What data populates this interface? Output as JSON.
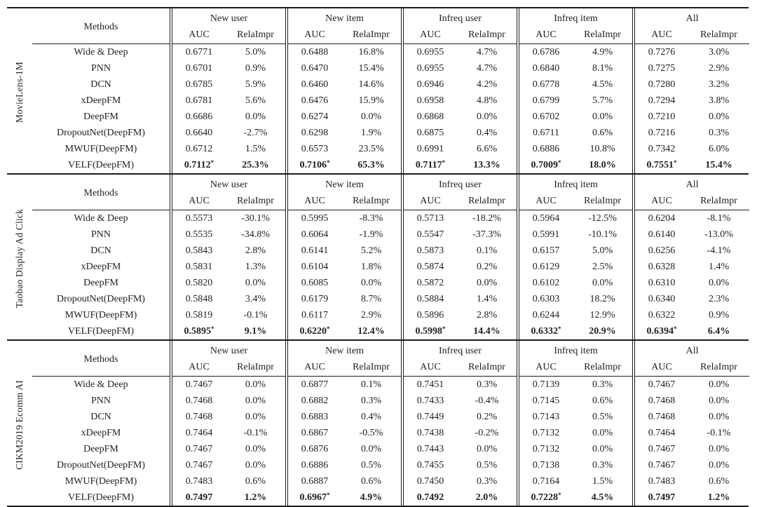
{
  "colors": {
    "background": "#ffffff",
    "text": "#1f1f1f",
    "rule": "#1c1c1c"
  },
  "table": {
    "methods_header": "Methods",
    "group_headers": [
      "New user",
      "New item",
      "Infreq user",
      "Infreq item",
      "All"
    ],
    "sub_headers": [
      "AUC",
      "RelaImpr"
    ],
    "sections": [
      {
        "dataset": "MovieLens-1M",
        "rows": [
          {
            "method": "Wide & Deep",
            "bold": false,
            "values": [
              "0.6771",
              "5.0%",
              "0.6488",
              "16.8%",
              "0.6955",
              "4.7%",
              "0.6786",
              "4.9%",
              "0.7276",
              "3.0%"
            ]
          },
          {
            "method": "PNN",
            "bold": false,
            "values": [
              "0.6701",
              "0.9%",
              "0.6470",
              "15.4%",
              "0.6955",
              "4.7%",
              "0.6840",
              "8.1%",
              "0.7275",
              "2.9%"
            ]
          },
          {
            "method": "DCN",
            "bold": false,
            "values": [
              "0.6785",
              "5.9%",
              "0.6460",
              "14.6%",
              "0.6946",
              "4.2%",
              "0.6778",
              "4.5%",
              "0.7280",
              "3.2%"
            ]
          },
          {
            "method": "xDeepFM",
            "bold": false,
            "values": [
              "0.6781",
              "5.6%",
              "0.6476",
              "15.9%",
              "0.6958",
              "4.8%",
              "0.6799",
              "5.7%",
              "0.7294",
              "3.8%"
            ]
          },
          {
            "method": "DeepFM",
            "bold": false,
            "values": [
              "0.6686",
              "0.0%",
              "0.6274",
              "0.0%",
              "0.6868",
              "0.0%",
              "0.6702",
              "0.0%",
              "0.7210",
              "0.0%"
            ]
          },
          {
            "method": "DropoutNet(DeepFM)",
            "bold": false,
            "values": [
              "0.6640",
              "-2.7%",
              "0.6298",
              "1.9%",
              "0.6875",
              "0.4%",
              "0.6711",
              "0.6%",
              "0.7216",
              "0.3%"
            ]
          },
          {
            "method": "MWUF(DeepFM)",
            "bold": false,
            "values": [
              "0.6712",
              "1.5%",
              "0.6573",
              "23.5%",
              "0.6991",
              "6.6%",
              "0.6886",
              "10.8%",
              "0.7342",
              "6.0%"
            ]
          },
          {
            "method": "VELF(DeepFM)",
            "bold": true,
            "values": [
              "0.7112*",
              "25.3%",
              "0.7106*",
              "65.3%",
              "0.7117*",
              "13.3%",
              "0.7009*",
              "18.0%",
              "0.7551*",
              "15.4%"
            ]
          }
        ]
      },
      {
        "dataset": "Taobao Display Ad Click",
        "rows": [
          {
            "method": "Wide & Deep",
            "bold": false,
            "values": [
              "0.5573",
              "-30.1%",
              "0.5995",
              "-8.3%",
              "0.5713",
              "-18.2%",
              "0.5964",
              "-12.5%",
              "0.6204",
              "-8.1%"
            ]
          },
          {
            "method": "PNN",
            "bold": false,
            "values": [
              "0.5535",
              "-34.8%",
              "0.6064",
              "-1.9%",
              "0.5547",
              "-37.3%",
              "0.5991",
              "-10.1%",
              "0.6140",
              "-13.0%"
            ]
          },
          {
            "method": "DCN",
            "bold": false,
            "values": [
              "0.5843",
              "2.8%",
              "0.6141",
              "5.2%",
              "0.5873",
              "0.1%",
              "0.6157",
              "5.0%",
              "0.6256",
              "-4.1%"
            ]
          },
          {
            "method": "xDeepFM",
            "bold": false,
            "values": [
              "0.5831",
              "1.3%",
              "0.6104",
              "1.8%",
              "0.5874",
              "0.2%",
              "0.6129",
              "2.5%",
              "0.6328",
              "1.4%"
            ]
          },
          {
            "method": "DeepFM",
            "bold": false,
            "values": [
              "0.5820",
              "0.0%",
              "0.6085",
              "0.0%",
              "0.5872",
              "0.0%",
              "0.6102",
              "0.0%",
              "0.6310",
              "0.0%"
            ]
          },
          {
            "method": "DropoutNet(DeepFM)",
            "bold": false,
            "values": [
              "0.5848",
              "3.4%",
              "0.6179",
              "8.7%",
              "0.5884",
              "1.4%",
              "0.6303",
              "18.2%",
              "0.6340",
              "2.3%"
            ]
          },
          {
            "method": "MWUF(DeepFM)",
            "bold": false,
            "values": [
              "0.5819",
              "-0.1%",
              "0.6117",
              "2.9%",
              "0.5896",
              "2.8%",
              "0.6244",
              "12.9%",
              "0.6322",
              "0.9%"
            ]
          },
          {
            "method": "VELF(DeepFM)",
            "bold": true,
            "values": [
              "0.5895*",
              "9.1%",
              "0.6220*",
              "12.4%",
              "0.5998*",
              "14.4%",
              "0.6332*",
              "20.9%",
              "0.6394*",
              "6.4%"
            ]
          }
        ]
      },
      {
        "dataset": "CIKM2019 Ecomm AI",
        "rows": [
          {
            "method": "Wide & Deep",
            "bold": false,
            "values": [
              "0.7467",
              "0.0%",
              "0.6877",
              "0.1%",
              "0.7451",
              "0.3%",
              "0.7139",
              "0.3%",
              "0.7467",
              "0.0%"
            ]
          },
          {
            "method": "PNN",
            "bold": false,
            "values": [
              "0.7468",
              "0.0%",
              "0.6882",
              "0.3%",
              "0.7433",
              "-0.4%",
              "0.7145",
              "0.6%",
              "0.7468",
              "0.0%"
            ]
          },
          {
            "method": "DCN",
            "bold": false,
            "values": [
              "0.7468",
              "0.0%",
              "0.6883",
              "0.4%",
              "0.7449",
              "0.2%",
              "0.7143",
              "0.5%",
              "0.7468",
              "0.0%"
            ]
          },
          {
            "method": "xDeepFM",
            "bold": false,
            "values": [
              "0.7464",
              "-0.1%",
              "0.6867",
              "-0.5%",
              "0.7438",
              "-0.2%",
              "0.7132",
              "0.0%",
              "0.7464",
              "-0.1%"
            ]
          },
          {
            "method": "DeepFM",
            "bold": false,
            "values": [
              "0.7467",
              "0.0%",
              "0.6876",
              "0.0%",
              "0.7443",
              "0.0%",
              "0.7132",
              "0.0%",
              "0.7467",
              "0.0%"
            ]
          },
          {
            "method": "DropoutNet(DeepFM)",
            "bold": false,
            "values": [
              "0.7467",
              "0.0%",
              "0.6886",
              "0.5%",
              "0.7455",
              "0.5%",
              "0.7138",
              "0.3%",
              "0.7467",
              "0.0%"
            ]
          },
          {
            "method": "MWUF(DeepFM)",
            "bold": false,
            "values": [
              "0.7483",
              "0.6%",
              "0.6887",
              "0.6%",
              "0.7450",
              "0.3%",
              "0.7164",
              "1.5%",
              "0.7483",
              "0.6%"
            ]
          },
          {
            "method": "VELF(DeepFM)",
            "bold": true,
            "values": [
              "0.7497",
              "1.2%",
              "0.6967*",
              "4.9%",
              "0.7492",
              "2.0%",
              "0.7228*",
              "4.5%",
              "0.7497",
              "1.2%"
            ]
          }
        ]
      }
    ]
  }
}
